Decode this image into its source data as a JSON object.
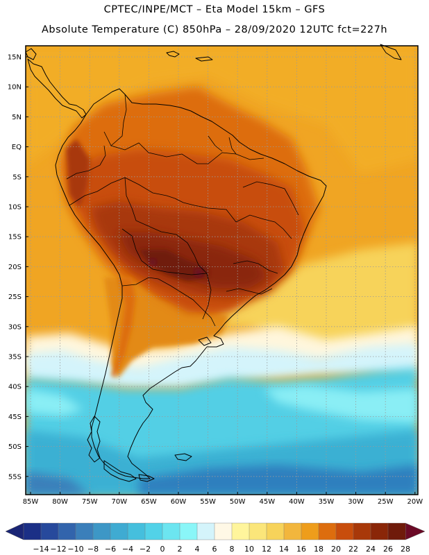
{
  "header": {
    "line1": "CPTEC/INPE/MCT –  Eta Model 15km – GFS",
    "line2": "Absolute Temperature (C) 850hPa – 28/09/2020 12UTC fct=227h"
  },
  "lat_labels": [
    "15N",
    "10N",
    "5N",
    "EQ",
    "5S",
    "10S",
    "15S",
    "20S",
    "25S",
    "30S",
    "35S",
    "40S",
    "45S",
    "50S",
    "55S"
  ],
  "lon_labels": [
    "85W",
    "80W",
    "75W",
    "70W",
    "65W",
    "60W",
    "55W",
    "50W",
    "45W",
    "40W",
    "35W",
    "30W",
    "25W",
    "20W"
  ],
  "colorbar": {
    "labels": [
      "-14",
      "-12",
      "-10",
      "-8",
      "-6",
      "-4",
      "-2",
      "0",
      "2",
      "4",
      "6",
      "8",
      "10",
      "12",
      "14",
      "16",
      "18",
      "20",
      "22",
      "24",
      "26",
      "28"
    ],
    "colors": [
      "#1b2f86",
      "#27499c",
      "#3264ac",
      "#3b7fba",
      "#3d97c6",
      "#3fabd2",
      "#45bfdd",
      "#52d2e8",
      "#6ce5f0",
      "#8af6f8",
      "#d4f4fb",
      "#fff8e6",
      "#fff59c",
      "#fbe67a",
      "#f7d35a",
      "#f2b63d",
      "#ee9d1b",
      "#dd6d0e",
      "#c84d0c",
      "#a83809",
      "#8a2608",
      "#6f1a0a"
    ],
    "low_arrow_color": "#1a2575",
    "high_arrow_color": "#6b0a26"
  },
  "colors": {
    "deep_heat": "#6a1f0c",
    "hot": "#8e2f0a",
    "warm": "#c4560e",
    "orange": "#e38a18",
    "amber": "#f2ad25",
    "yellow": "#f9d558",
    "cream": "#fff6dc",
    "cyan_light": "#8aeef5",
    "cyan": "#52cfe5",
    "teal": "#3ab0d3",
    "blue": "#2f7fbe"
  }
}
